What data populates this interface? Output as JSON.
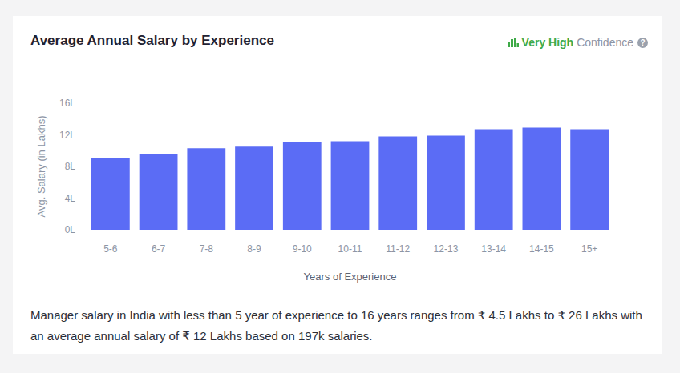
{
  "chart_data": {
    "type": "bar",
    "title": "Average Annual Salary by Experience",
    "y_label": "Avg. Salary (in Lakhs)",
    "x_label": "Years of Experience",
    "categories": [
      "5-6",
      "6-7",
      "7-8",
      "8-9",
      "9-10",
      "10-11",
      "11-12",
      "12-13",
      "13-14",
      "14-15",
      "15+"
    ],
    "values": [
      9.1,
      9.6,
      10.3,
      10.5,
      11.1,
      11.2,
      11.8,
      11.9,
      12.7,
      12.9,
      12.7
    ],
    "color": "#5b6cf5",
    "ylim": [
      0,
      16
    ],
    "yticks": [
      {
        "value": 0,
        "label": "0L"
      },
      {
        "value": 4,
        "label": "4L"
      },
      {
        "value": 8,
        "label": "8L"
      },
      {
        "value": 12,
        "label": "12L"
      },
      {
        "value": 16,
        "label": "16L"
      }
    ],
    "grid": false,
    "annotations": {
      "confidence_level": "Very High",
      "confidence_label": "Confidence",
      "help_icon": "?",
      "footer": "Manager salary in India with less than 5 year of experience to 16 years ranges from ₹ 4.5 Lakhs to ₹ 26 Lakhs with an average annual salary of ₹ 12 Lakhs based on 197k salaries."
    }
  }
}
